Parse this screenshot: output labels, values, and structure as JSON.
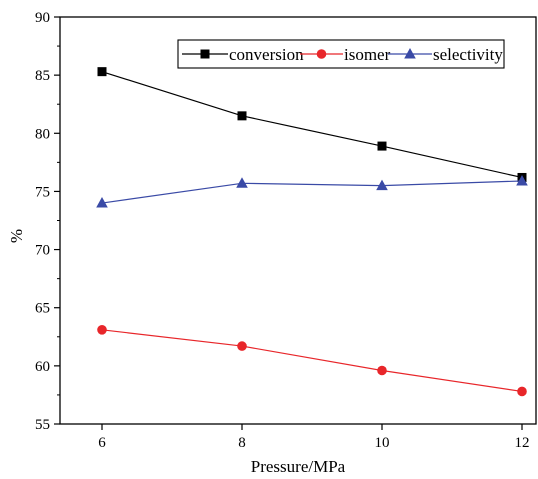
{
  "chart_data": {
    "type": "line",
    "xlabel": "Pressure/MPa",
    "ylabel": "%",
    "xlim": [
      5.4,
      12.2
    ],
    "ylim": [
      55,
      90
    ],
    "x": [
      6,
      8,
      10,
      12
    ],
    "x_ticks": [
      6,
      8,
      10,
      12
    ],
    "y_ticks": [
      55,
      60,
      65,
      70,
      75,
      80,
      85,
      90
    ],
    "grid": false,
    "legend_position": "top-right",
    "series": [
      {
        "name": "conversion",
        "values": [
          85.3,
          81.5,
          78.9,
          76.2
        ],
        "color": "#000000",
        "marker": "square"
      },
      {
        "name": "isomer",
        "values": [
          63.1,
          61.7,
          59.6,
          57.8
        ],
        "color": "#e8262a",
        "marker": "circle"
      },
      {
        "name": "selectivity",
        "values": [
          74.0,
          75.7,
          75.5,
          75.9
        ],
        "color": "#3a4aa6",
        "marker": "triangle"
      }
    ]
  }
}
